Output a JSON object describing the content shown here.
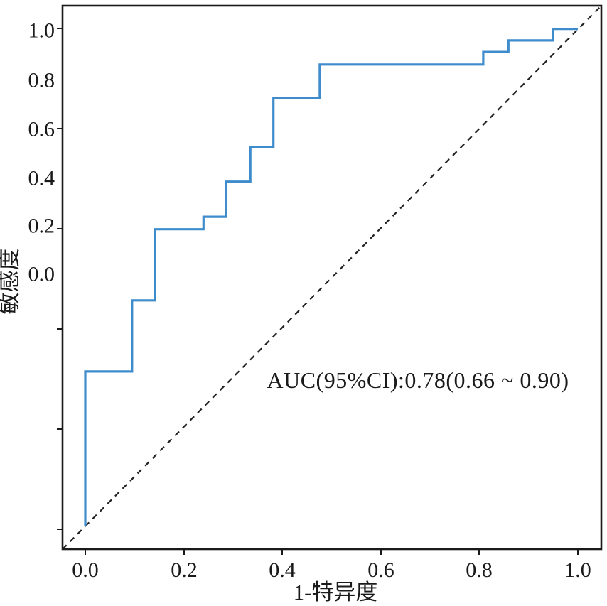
{
  "figure": {
    "y_axis_title": "敏感度",
    "x_axis_title": "1-特异度",
    "annotation": "AUC(95%CI):0.78(0.66 ~ 0.90)"
  },
  "chart_data": {
    "type": "line",
    "subtype": "roc_step_curve",
    "title": "",
    "xlabel": "1-特异度",
    "ylabel": "敏感度",
    "xlim": [
      0,
      1
    ],
    "ylim": [
      0,
      1
    ],
    "grid": false,
    "legend": false,
    "x_tick_labels": [
      "0.0",
      "0.2",
      "0.4",
      "0.6",
      "0.8",
      "1.0"
    ],
    "y_tick_labels": [
      "1.0",
      "0.8",
      "0.6",
      "0.4",
      "0.2",
      "0.0"
    ],
    "annotation": "AUC(95%CI):0.78(0.66 ~ 0.90)",
    "auc": 0.78,
    "auc_ci_95": [
      0.66,
      0.9
    ],
    "series": [
      {
        "name": "ROC curve",
        "color": "#3F8CCC",
        "style": "solid",
        "points": [
          [
            0.0,
            0.007
          ],
          [
            0.0,
            0.315
          ],
          [
            0.095,
            0.315
          ],
          [
            0.095,
            0.457
          ],
          [
            0.141,
            0.457
          ],
          [
            0.141,
            0.599
          ],
          [
            0.24,
            0.599
          ],
          [
            0.24,
            0.624
          ],
          [
            0.286,
            0.624
          ],
          [
            0.286,
            0.694
          ],
          [
            0.335,
            0.694
          ],
          [
            0.335,
            0.763
          ],
          [
            0.382,
            0.763
          ],
          [
            0.382,
            0.861
          ],
          [
            0.476,
            0.861
          ],
          [
            0.476,
            0.928
          ],
          [
            0.808,
            0.928
          ],
          [
            0.808,
            0.953
          ],
          [
            0.859,
            0.953
          ],
          [
            0.859,
            0.976
          ],
          [
            0.949,
            0.976
          ],
          [
            0.949,
            0.999
          ],
          [
            1.0,
            0.999
          ]
        ]
      },
      {
        "name": "Reference diagonal",
        "color": "#222222",
        "style": "dashed",
        "points": [
          [
            0,
            0
          ],
          [
            1,
            1
          ]
        ]
      }
    ]
  },
  "colors": {
    "curve": "#3F8CCC",
    "axis": "#1a1a1a",
    "diagonal": "#222222",
    "text": "#1a1a1a",
    "background": "#ffffff"
  }
}
